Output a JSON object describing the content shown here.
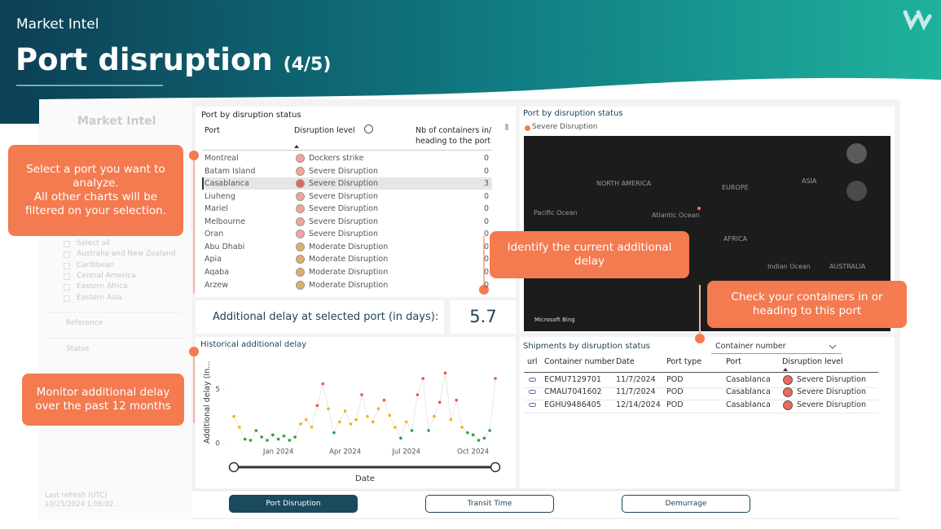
{
  "header": {
    "section": "Market Intel",
    "title": "Port disruption",
    "page": "(4/5)"
  },
  "sidebar": {
    "title": "Market Intel",
    "filters": [
      "Select all",
      "Australia and New Zealand",
      "Caribbean",
      "Central America",
      "Eastern Africa",
      "Eastern Asia"
    ],
    "sections": [
      "Reference",
      "Status"
    ],
    "refresh_label": "Last refresh (UTC)",
    "refresh_value": "10/25/2024 1:06:02 ..."
  },
  "callouts": [
    "Select a port you want to analyze.\nAll other charts will be filtered on your selection.",
    "Identify the current additional delay",
    "Check your containers in or heading to this port",
    "Monitor additional delay over the past 12 months"
  ],
  "port_table": {
    "title": "Port by disruption status",
    "columns": [
      "Port",
      "Disruption level",
      "Nb of containers in/\nheading to the port"
    ],
    "rows": [
      {
        "port": "Montreal",
        "level": "Dockers strike",
        "count": 0,
        "color": "#f4a39b"
      },
      {
        "port": "Batam Island",
        "level": "Severe Disruption",
        "count": 0,
        "color": "#f4a39b"
      },
      {
        "port": "Casablanca",
        "level": "Severe Disruption",
        "count": 3,
        "color": "#e0685c",
        "selected": true
      },
      {
        "port": "Liuheng",
        "level": "Severe Disruption",
        "count": 0,
        "color": "#f4a39b"
      },
      {
        "port": "Mariel",
        "level": "Severe Disruption",
        "count": 0,
        "color": "#f4a39b"
      },
      {
        "port": "Melbourne",
        "level": "Severe Disruption",
        "count": 0,
        "color": "#f4a39b"
      },
      {
        "port": "Oran",
        "level": "Severe Disruption",
        "count": 0,
        "color": "#f4a39b"
      },
      {
        "port": "Abu Dhabi",
        "level": "Moderate Disruption",
        "count": 0,
        "color": "#dcb06c"
      },
      {
        "port": "Apia",
        "level": "Moderate Disruption",
        "count": 0,
        "color": "#dcb06c"
      },
      {
        "port": "Aqaba",
        "level": "Moderate Disruption",
        "count": 0,
        "color": "#dcb06c"
      },
      {
        "port": "Arzew",
        "level": "Moderate Disruption",
        "count": 0,
        "color": "#dcb06c"
      }
    ]
  },
  "kpi": {
    "label": "Additional delay at selected port (in days):",
    "value": 5.7
  },
  "map": {
    "title": "Port by disruption status",
    "legend": "Severe Disruption",
    "legend_color": "#f47a50",
    "labels": [
      "NORTH AMERICA",
      "EUROPE",
      "ASIA",
      "Pacific Ocean",
      "Atlantic Ocean",
      "AFRICA",
      "Indian Ocean",
      "AUSTRALIA"
    ],
    "credit": "Microsoft Bing"
  },
  "shipments": {
    "title": "Shipments by disruption status",
    "dropdown": "Container number",
    "columns": [
      "url",
      "Container number",
      "Date",
      "Port type",
      "Port",
      "Disruption level"
    ],
    "rows": [
      [
        "ECMU7129701",
        "11/7/2024",
        "POD",
        "Casablanca",
        "Severe Disruption"
      ],
      [
        "CMAU7041602",
        "11/7/2024",
        "POD",
        "Casablanca",
        "Severe Disruption"
      ],
      [
        "EGHU9486405",
        "12/14/2024",
        "POD",
        "Casablanca",
        "Severe Disruption"
      ]
    ],
    "level_color": "#f0675a"
  },
  "tabs": [
    "Port Disruption",
    "Transit Time",
    "Demurrage"
  ],
  "chart_data": {
    "type": "scatter",
    "title": "Historical additional delay",
    "x_label": "Date",
    "y_label": "Additional delay (In...",
    "categories": [
      null,
      null,
      null,
      null,
      null,
      null,
      null,
      null,
      "Jan 2024",
      null,
      null,
      null,
      null,
      null,
      null,
      null,
      null,
      null,
      null,
      null,
      "Apr 2024",
      null,
      null,
      null,
      null,
      null,
      null,
      null,
      null,
      null,
      null,
      "Jul 2024",
      null,
      null,
      null,
      null,
      null,
      null,
      null,
      null,
      null,
      null,
      null,
      "Oct 2024",
      null,
      null,
      null,
      null
    ],
    "values": [
      2.5,
      1.5,
      0.4,
      0.3,
      1.2,
      0.6,
      0.3,
      0.8,
      0.4,
      0.7,
      0.3,
      0.6,
      1.8,
      2.2,
      1.5,
      3.5,
      5.5,
      3.2,
      1.0,
      2.0,
      3.0,
      1.8,
      2.2,
      4.5,
      2.5,
      2.0,
      3.2,
      4.0,
      2.6,
      1.5,
      0.5,
      2.0,
      1.2,
      4.5,
      6.0,
      1.2,
      2.5,
      3.8,
      6.5,
      2.2,
      4.0,
      1.5,
      1.0,
      0.8,
      0.3,
      0.5,
      1.2,
      6.0
    ],
    "ylim": [
      0,
      7.5
    ],
    "yticks": [
      0,
      5
    ],
    "thresholds": [
      1.5,
      3.5
    ],
    "colors": [
      "#2e9e3e",
      "#f0b400",
      "#e8573a"
    ]
  }
}
